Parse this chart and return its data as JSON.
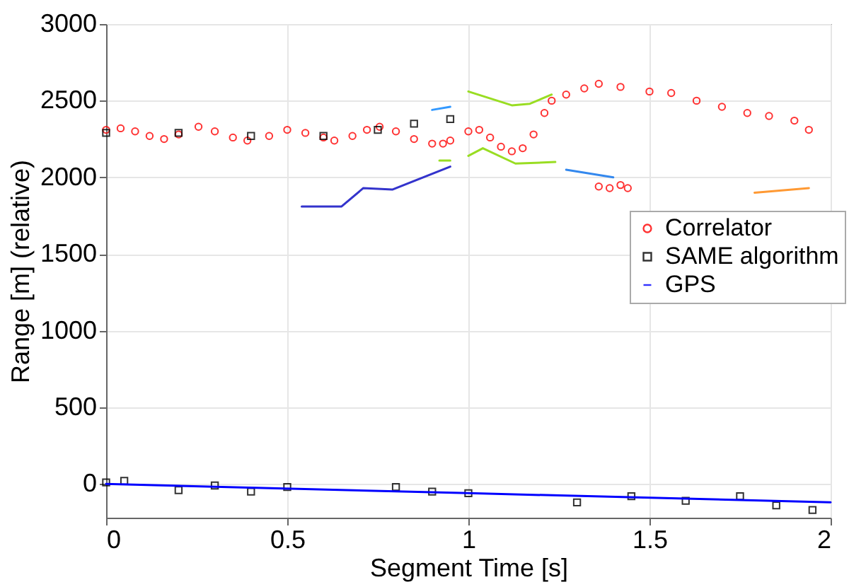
{
  "chart_data": {
    "type": "scatter",
    "xlabel": "Segment Time [s]",
    "ylabel": "Range [m] (relative)",
    "xlim": [
      0,
      2
    ],
    "ylim": [
      -220,
      3000
    ],
    "xticks": [
      0,
      0.5,
      1,
      1.5,
      2
    ],
    "yticks": [
      0,
      500,
      1000,
      1500,
      2000,
      2500,
      3000
    ],
    "grid": true,
    "legend": "right",
    "series": [
      {
        "name": "Correlator",
        "color": "#ff0000",
        "marker": "circle",
        "x": [
          0,
          0.04,
          0.08,
          0.12,
          0.16,
          0.2,
          0.255,
          0.3,
          0.35,
          0.39,
          0.45,
          0.5,
          0.55,
          0.6,
          0.63,
          0.68,
          0.72,
          0.755,
          0.8,
          0.85,
          0.9,
          0.93,
          0.95,
          1.0,
          1.03,
          1.06,
          1.09,
          1.12,
          1.15,
          1.18,
          1.21,
          1.23,
          1.27,
          1.32,
          1.36,
          1.42,
          1.5,
          1.56,
          1.63,
          1.7,
          1.77,
          1.83,
          1.9,
          1.94,
          1.36,
          1.39,
          1.42,
          1.44
        ],
        "values": [
          2310,
          2320,
          2300,
          2270,
          2250,
          2280,
          2330,
          2300,
          2260,
          2240,
          2270,
          2310,
          2290,
          2260,
          2240,
          2270,
          2310,
          2330,
          2300,
          2250,
          2220,
          2220,
          2240,
          2300,
          2310,
          2260,
          2200,
          2170,
          2190,
          2280,
          2420,
          2500,
          2540,
          2580,
          2610,
          2590,
          2560,
          2550,
          2500,
          2460,
          2420,
          2400,
          2370,
          2310,
          1940,
          1930,
          1950,
          1930
        ]
      },
      {
        "name": "SAME algorithm",
        "color": "#000000",
        "marker": "square",
        "x": [
          0,
          0.2,
          0.4,
          0.6,
          0.75,
          0.85,
          0.95,
          0,
          0.05,
          0.2,
          0.3,
          0.4,
          0.5,
          0.8,
          0.9,
          1.0,
          1.3,
          1.45,
          1.6,
          1.75,
          1.85,
          1.95
        ],
        "values": [
          2290,
          2290,
          2270,
          2270,
          2310,
          2350,
          2380,
          10,
          20,
          -40,
          -10,
          -50,
          -20,
          -20,
          -50,
          -60,
          -120,
          -80,
          -110,
          -80,
          -140,
          -170
        ]
      },
      {
        "name": "GPS",
        "color": "#0000ff",
        "type": "line",
        "marker": "none",
        "line_style": "solid",
        "x": [
          0,
          1,
          2
        ],
        "values": [
          0,
          -60,
          -120
        ]
      },
      {
        "color": "#3399ff",
        "type": "line",
        "marker": "none",
        "line_style": "solid",
        "x": [
          0.9,
          0.95
        ],
        "values": [
          2440,
          2460
        ]
      },
      {
        "color": "#99dd22",
        "type": "line",
        "marker": "none",
        "line_style": "solid",
        "x": [
          0.92,
          0.95
        ],
        "values": [
          2110,
          2110
        ]
      },
      {
        "color": "#3333cc",
        "type": "line",
        "marker": "none",
        "line_style": "solid",
        "x": [
          0.54,
          0.65,
          0.71,
          0.79,
          0.95
        ],
        "values": [
          1810,
          1810,
          1930,
          1920,
          2070
        ]
      },
      {
        "color": "#99dd22",
        "type": "line",
        "marker": "none",
        "line_style": "solid",
        "x": [
          1.0,
          1.12,
          1.17,
          1.23
        ],
        "values": [
          2560,
          2470,
          2480,
          2540
        ]
      },
      {
        "color": "#99dd22",
        "type": "line",
        "marker": "none",
        "line_style": "solid",
        "x": [
          1.0,
          1.04,
          1.13,
          1.24
        ],
        "values": [
          2140,
          2190,
          2090,
          2100
        ]
      },
      {
        "color": "#3388ee",
        "type": "line",
        "marker": "none",
        "line_style": "solid",
        "x": [
          1.27,
          1.4
        ],
        "values": [
          2050,
          2000
        ]
      },
      {
        "color": "#ff9933",
        "type": "line",
        "marker": "none",
        "line_style": "solid",
        "x": [
          1.79,
          1.94
        ],
        "values": [
          1900,
          1930
        ]
      }
    ]
  }
}
